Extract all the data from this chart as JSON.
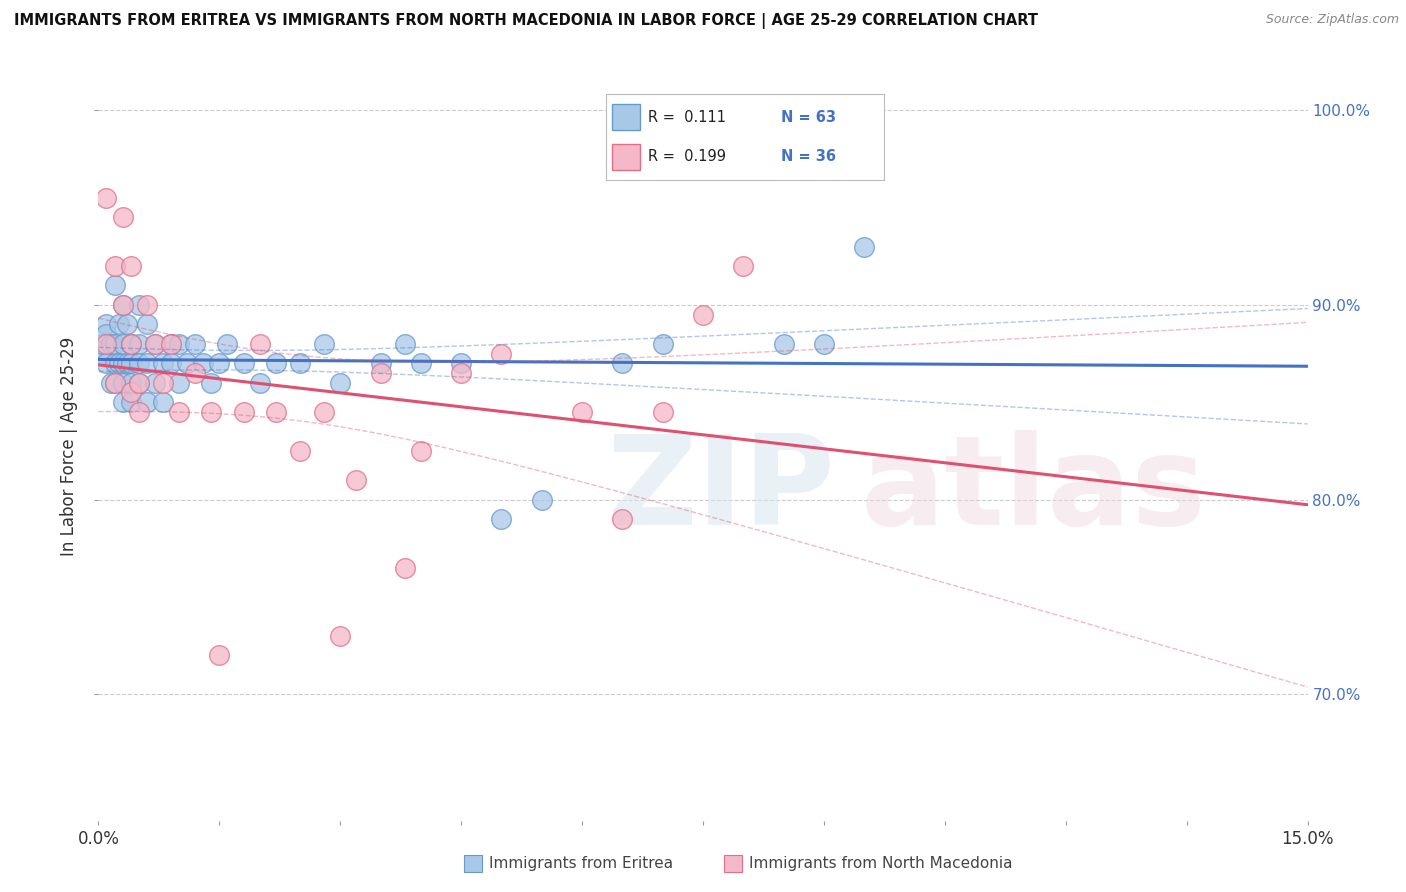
{
  "title": "IMMIGRANTS FROM ERITREA VS IMMIGRANTS FROM NORTH MACEDONIA IN LABOR FORCE | AGE 25-29 CORRELATION CHART",
  "source": "Source: ZipAtlas.com",
  "ylabel": "In Labor Force | Age 25-29",
  "xlim": [
    0.0,
    0.15
  ],
  "ylim": [
    0.635,
    1.02
  ],
  "color_eritrea_fill": "#A8C8E8",
  "color_eritrea_edge": "#6699CC",
  "color_macedonia_fill": "#F4B8C8",
  "color_macedonia_edge": "#E0708A",
  "color_line_eritrea": "#4472C4",
  "color_line_macedonia": "#E05070",
  "background_color": "#FFFFFF",
  "legend_r1": "R =  0.111",
  "legend_n1": "N = 63",
  "legend_r2": "R =  0.199",
  "legend_n2": "N = 36",
  "eritrea_x": [
    0.0005,
    0.0005,
    0.001,
    0.001,
    0.001,
    0.0015,
    0.0015,
    0.002,
    0.002,
    0.002,
    0.002,
    0.0025,
    0.0025,
    0.003,
    0.003,
    0.003,
    0.003,
    0.003,
    0.0035,
    0.0035,
    0.004,
    0.004,
    0.004,
    0.004,
    0.004,
    0.005,
    0.005,
    0.005,
    0.005,
    0.006,
    0.006,
    0.006,
    0.007,
    0.007,
    0.008,
    0.008,
    0.009,
    0.009,
    0.01,
    0.01,
    0.011,
    0.012,
    0.013,
    0.014,
    0.015,
    0.016,
    0.018,
    0.02,
    0.022,
    0.025,
    0.028,
    0.03,
    0.035,
    0.038,
    0.04,
    0.045,
    0.05,
    0.055,
    0.065,
    0.07,
    0.085,
    0.09,
    0.095
  ],
  "eritrea_y": [
    0.875,
    0.88,
    0.87,
    0.89,
    0.885,
    0.86,
    0.88,
    0.87,
    0.88,
    0.86,
    0.91,
    0.89,
    0.87,
    0.9,
    0.87,
    0.86,
    0.85,
    0.88,
    0.89,
    0.87,
    0.88,
    0.85,
    0.87,
    0.88,
    0.86,
    0.86,
    0.88,
    0.9,
    0.87,
    0.89,
    0.85,
    0.87,
    0.88,
    0.86,
    0.87,
    0.85,
    0.88,
    0.87,
    0.88,
    0.86,
    0.87,
    0.88,
    0.87,
    0.86,
    0.87,
    0.88,
    0.87,
    0.86,
    0.87,
    0.87,
    0.88,
    0.86,
    0.87,
    0.88,
    0.87,
    0.87,
    0.79,
    0.8,
    0.87,
    0.88,
    0.88,
    0.88,
    0.93
  ],
  "macedonia_x": [
    0.001,
    0.001,
    0.002,
    0.002,
    0.003,
    0.003,
    0.004,
    0.004,
    0.004,
    0.005,
    0.005,
    0.006,
    0.007,
    0.008,
    0.009,
    0.01,
    0.012,
    0.014,
    0.015,
    0.018,
    0.02,
    0.022,
    0.025,
    0.028,
    0.03,
    0.032,
    0.035,
    0.038,
    0.04,
    0.045,
    0.05,
    0.06,
    0.065,
    0.07,
    0.075,
    0.08
  ],
  "macedonia_y": [
    0.955,
    0.88,
    0.92,
    0.86,
    0.9,
    0.945,
    0.88,
    0.855,
    0.92,
    0.86,
    0.845,
    0.9,
    0.88,
    0.86,
    0.88,
    0.845,
    0.865,
    0.845,
    0.72,
    0.845,
    0.88,
    0.845,
    0.825,
    0.845,
    0.73,
    0.81,
    0.865,
    0.765,
    0.825,
    0.865,
    0.875,
    0.845,
    0.79,
    0.845,
    0.895,
    0.92
  ]
}
